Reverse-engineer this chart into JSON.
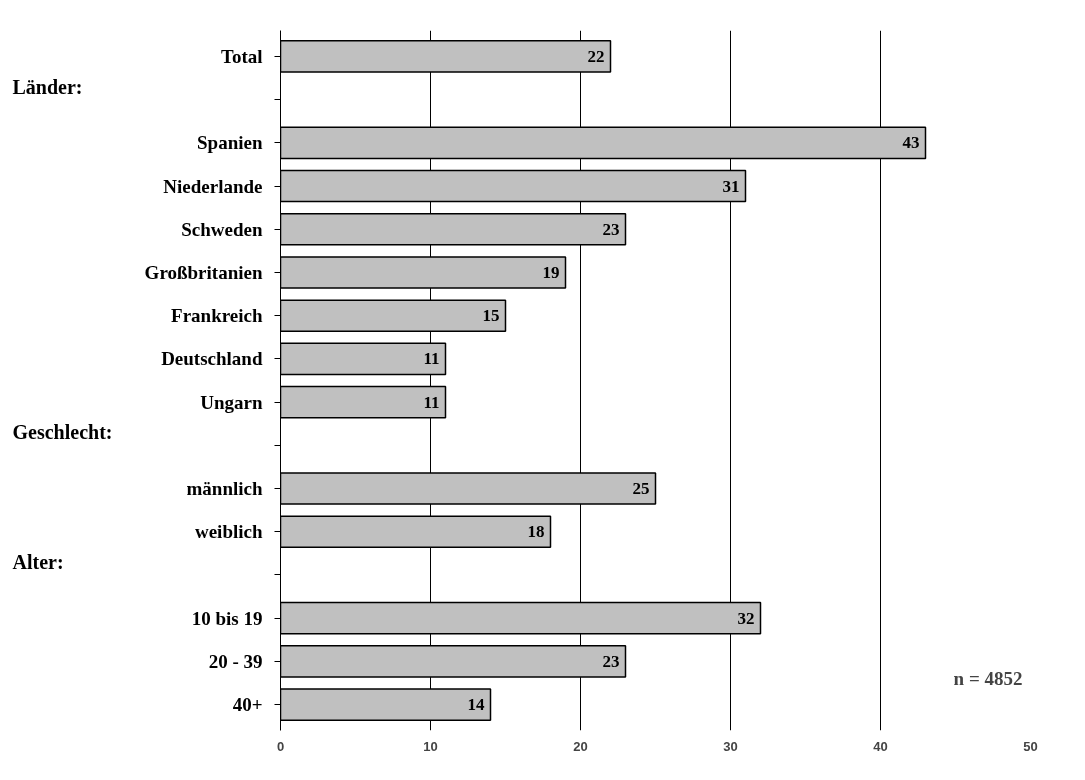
{
  "chart_data": {
    "type": "bar",
    "orientation": "horizontal",
    "categories": [
      "Total",
      null,
      "Spanien",
      "Niederlande",
      "Schweden",
      "Großbritanien",
      "Frankreich",
      "Deutschland",
      "Ungarn",
      null,
      "männlich",
      "weiblich",
      null,
      "10 bis 19",
      "20 - 39",
      "40+"
    ],
    "values": [
      22,
      null,
      43,
      31,
      23,
      19,
      15,
      11,
      11,
      null,
      25,
      18,
      null,
      32,
      23,
      14
    ],
    "color": "#c0c0c0",
    "xlim": [
      0,
      50
    ],
    "xticks": [
      0,
      10,
      20,
      30,
      40,
      50
    ],
    "grid": "x",
    "data_labels": true,
    "annotations": [
      "Länder:",
      "Geschlecht:",
      "Alter:",
      "n = 4852"
    ]
  }
}
